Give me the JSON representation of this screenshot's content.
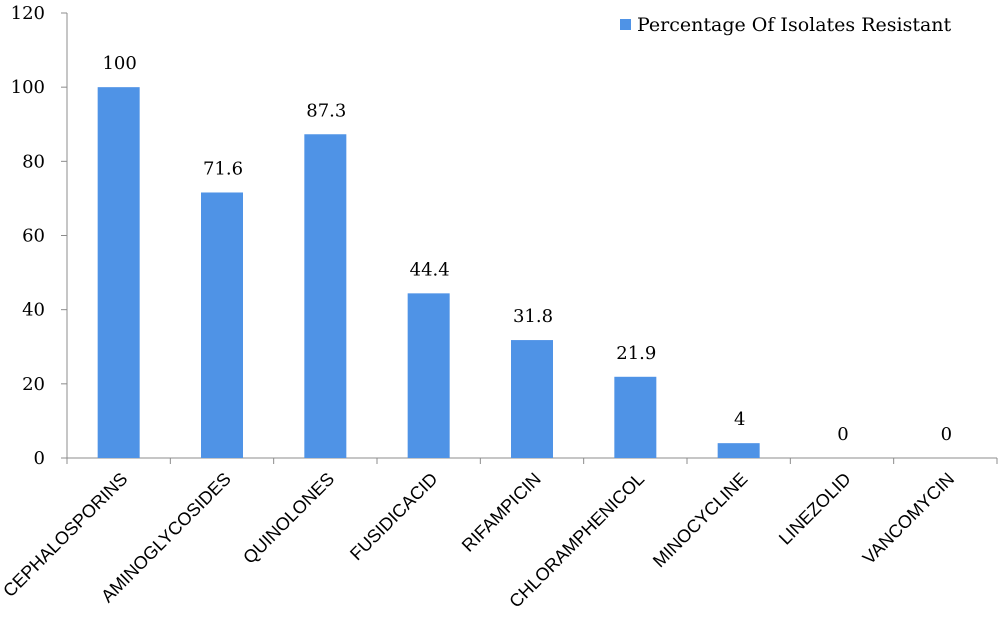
{
  "chart_data": {
    "type": "bar",
    "categories": [
      "CEPHALOSPORINS",
      "AMINOGLYCOSIDES",
      "QUINOLONES",
      "FUSIDICACID",
      "RIFAMPICIN",
      "CHLORAMPHENICOL",
      "MINOCYCLINE",
      "LINEZOLID",
      "VANCOMYCIN"
    ],
    "series": [
      {
        "name": "Percentage Of Isolates Resistant",
        "values": [
          100,
          71.6,
          87.3,
          44.4,
          31.8,
          21.9,
          4,
          0,
          0
        ]
      }
    ],
    "data_labels": [
      "100",
      "71.6",
      "87.3",
      "44.4",
      "31.8",
      "21.9",
      "4",
      "0",
      "0"
    ],
    "y_ticks": [
      "0",
      "20",
      "40",
      "60",
      "80",
      "100",
      "120"
    ],
    "ylim": [
      0,
      120
    ],
    "grid": false,
    "legend_position": "top-right",
    "colors": {
      "bar": "#4f93e6",
      "axis": "#8c8c8c"
    }
  }
}
